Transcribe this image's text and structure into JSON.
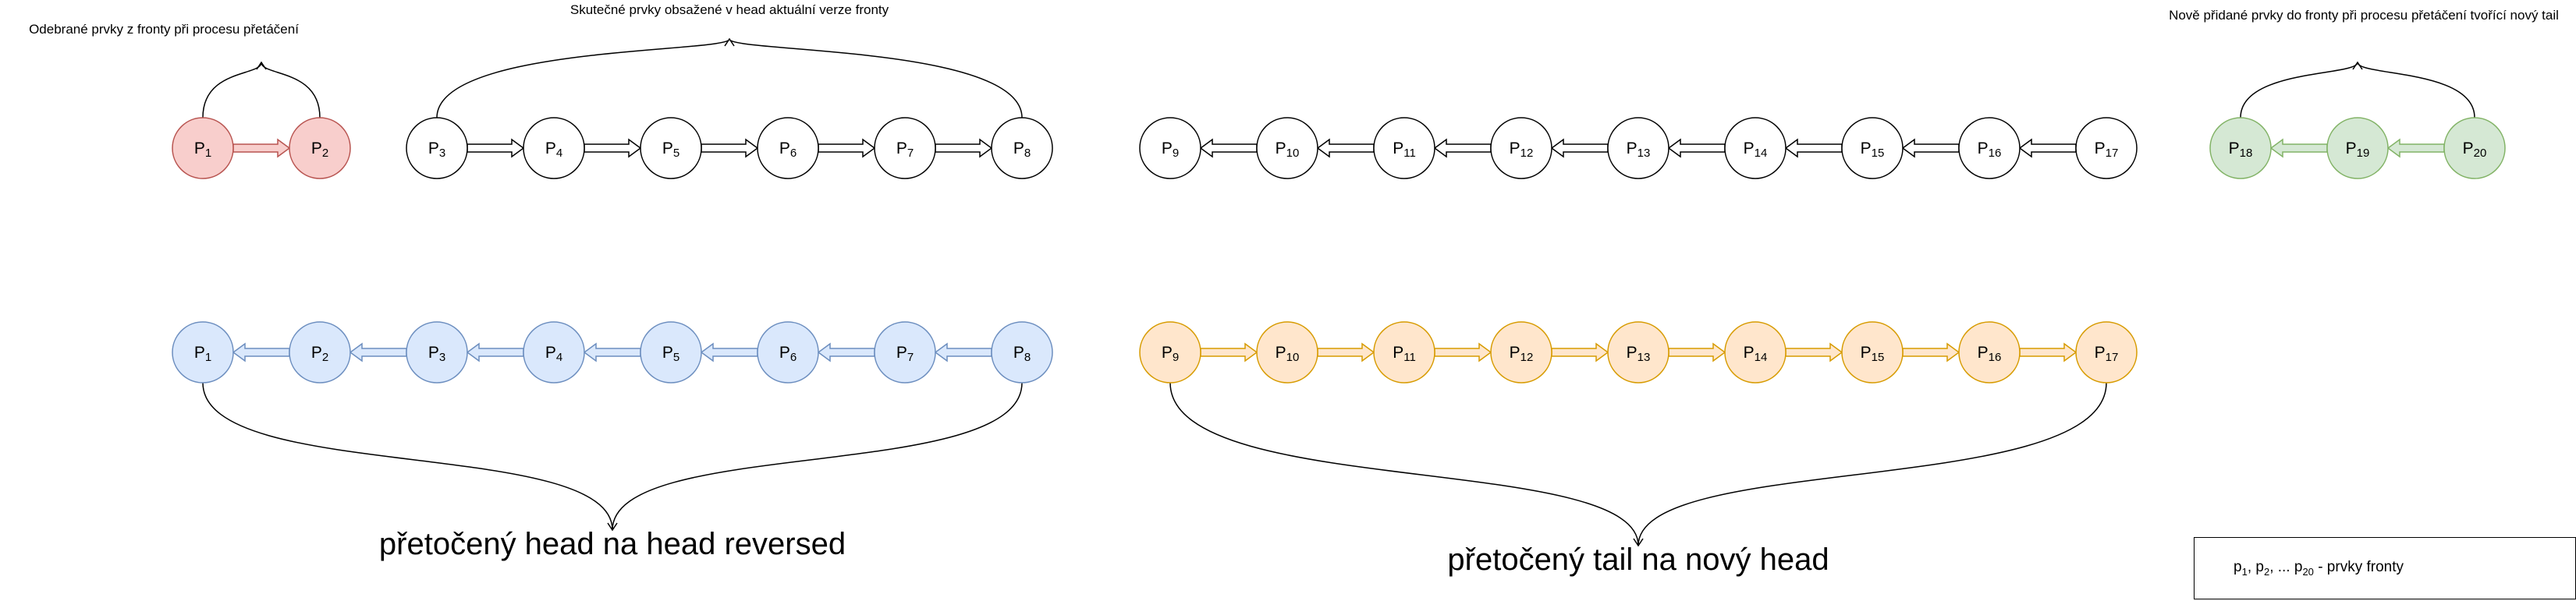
{
  "annotations": {
    "removed": "Odebrané prvky z fronty při procesu přetáčení",
    "actual_head": "Skutečné prvky obsažené v head aktuální verze fronty",
    "new_tail": "Nově přidané prvky do fronty při procesu přetáčení tvořící nový tail"
  },
  "captions": {
    "head_reversed": "přetočený head na head reversed",
    "tail_new_head": "přetočený tail na nový head"
  },
  "legend": {
    "p1": "p",
    "s1": "1",
    "sep1": ", ",
    "p2": "p",
    "s2": "2",
    "sep2": ", ... ",
    "p3": "p",
    "s3": "20",
    "desc": " - prvky fronty"
  },
  "colors": {
    "removed": {
      "fill": "#f8cecc",
      "stroke": "#b85450"
    },
    "plain": {
      "fill": "#ffffff",
      "stroke": "#000000"
    },
    "added": {
      "fill": "#d5e8d4",
      "stroke": "#82b366"
    },
    "reversed_head": {
      "fill": "#dae8fc",
      "stroke": "#6c8ebf"
    },
    "reversed_tail": {
      "fill": "#ffe6cc",
      "stroke": "#d79b00"
    }
  },
  "rows": [
    {
      "name": "removed-elements",
      "style": "removed",
      "direction": "right",
      "nodes": [
        {
          "base": "P",
          "sub": "1"
        },
        {
          "base": "P",
          "sub": "2"
        }
      ]
    },
    {
      "name": "actual-head",
      "style": "plain",
      "direction": "right",
      "nodes": [
        {
          "base": "P",
          "sub": "3"
        },
        {
          "base": "P",
          "sub": "4"
        },
        {
          "base": "P",
          "sub": "5"
        },
        {
          "base": "P",
          "sub": "6"
        },
        {
          "base": "P",
          "sub": "7"
        },
        {
          "base": "P",
          "sub": "8"
        }
      ]
    },
    {
      "name": "tail",
      "style": "plain",
      "direction": "left",
      "nodes": [
        {
          "base": "P",
          "sub": "9"
        },
        {
          "base": "P",
          "sub": "10"
        },
        {
          "base": "P",
          "sub": "11"
        },
        {
          "base": "P",
          "sub": "12"
        },
        {
          "base": "P",
          "sub": "13"
        },
        {
          "base": "P",
          "sub": "14"
        },
        {
          "base": "P",
          "sub": "15"
        },
        {
          "base": "P",
          "sub": "16"
        },
        {
          "base": "P",
          "sub": "17"
        }
      ]
    },
    {
      "name": "added-elements",
      "style": "added",
      "direction": "left",
      "nodes": [
        {
          "base": "P",
          "sub": "18"
        },
        {
          "base": "P",
          "sub": "19"
        },
        {
          "base": "P",
          "sub": "20"
        }
      ]
    },
    {
      "name": "head-reversed",
      "style": "reversed_head",
      "direction": "left",
      "nodes": [
        {
          "base": "P",
          "sub": "1"
        },
        {
          "base": "P",
          "sub": "2"
        },
        {
          "base": "P",
          "sub": "3"
        },
        {
          "base": "P",
          "sub": "4"
        },
        {
          "base": "P",
          "sub": "5"
        },
        {
          "base": "P",
          "sub": "6"
        },
        {
          "base": "P",
          "sub": "7"
        },
        {
          "base": "P",
          "sub": "8"
        }
      ]
    },
    {
      "name": "tail-new-head",
      "style": "reversed_tail",
      "direction": "right",
      "nodes": [
        {
          "base": "P",
          "sub": "9"
        },
        {
          "base": "P",
          "sub": "10"
        },
        {
          "base": "P",
          "sub": "11"
        },
        {
          "base": "P",
          "sub": "12"
        },
        {
          "base": "P",
          "sub": "13"
        },
        {
          "base": "P",
          "sub": "14"
        },
        {
          "base": "P",
          "sub": "15"
        },
        {
          "base": "P",
          "sub": "16"
        },
        {
          "base": "P",
          "sub": "17"
        }
      ]
    }
  ]
}
